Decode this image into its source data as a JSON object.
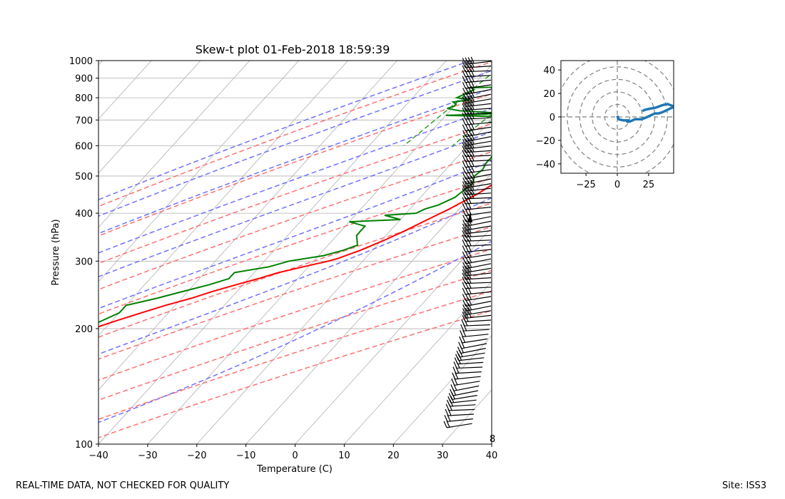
{
  "chart_data": [
    {
      "type": "line",
      "subtype": "skew-t",
      "title": "Skew-t plot 01-Feb-2018 18:59:39",
      "xlabel": "Temperature (C)",
      "ylabel": "Pressure (hPa)",
      "xlim": [
        -40,
        40
      ],
      "ylim": [
        1000,
        100
      ],
      "y_scale": "log",
      "x_ticks": [
        "−40",
        "−30",
        "−20",
        "−10",
        "0",
        "10",
        "20",
        "30",
        "40"
      ],
      "y_ticks": [
        "100",
        "200",
        "300",
        "400",
        "500",
        "600",
        "700",
        "800",
        "900",
        "1000"
      ],
      "grid": true,
      "series": [
        {
          "role": "temperature",
          "color": "#ff0000",
          "p": [
            1000,
            990,
            960,
            930,
            900,
            870,
            850,
            830,
            810,
            800,
            780,
            750,
            720,
            700,
            680,
            650,
            620,
            600,
            580,
            560,
            540,
            520,
            500,
            490,
            470,
            450,
            430,
            410,
            400,
            380,
            360,
            340,
            320,
            305,
            300,
            295,
            290,
            285,
            280,
            275,
            270,
            260,
            250,
            240,
            230,
            220,
            210,
            200,
            190,
            180,
            170,
            160,
            150,
            140,
            130,
            125,
            120,
            115,
            110,
            105,
            100
          ],
          "t": [
            0,
            -2,
            -5.5,
            -6.5,
            -6,
            -4.5,
            -4,
            -4.5,
            -4,
            -4.3,
            -4.5,
            -5,
            -5.5,
            -5.5,
            -6,
            -6,
            -6,
            -5.5,
            -5.5,
            -6,
            -5.5,
            -6.5,
            -6.5,
            -7,
            -8,
            -9,
            -10.5,
            -12,
            -13,
            -15,
            -17,
            -19.5,
            -22.5,
            -25.5,
            -27,
            -29,
            -31,
            -33,
            -35,
            -36.5,
            -38,
            -41.5,
            -45,
            -48,
            -52,
            -55.5,
            -59,
            -62.5,
            -66,
            -69,
            -72,
            -74.5,
            -77,
            -79,
            -81,
            -82,
            -82,
            -82.5,
            -82,
            -83,
            -83
          ]
        },
        {
          "role": "dewpoint",
          "color": "#008000",
          "p": [
            1000,
            980,
            950,
            920,
            900,
            870,
            860,
            850,
            840,
            820,
            800,
            790,
            780,
            770,
            760,
            750,
            740,
            730,
            725,
            720,
            715,
            710,
            705,
            700,
            695,
            690,
            680,
            670,
            650,
            630,
            610,
            600,
            580,
            560,
            540,
            520,
            500,
            480,
            460,
            440,
            420,
            410,
            400,
            395,
            390,
            385,
            380,
            370,
            350,
            340,
            330,
            320,
            310,
            300,
            290,
            280,
            270,
            260,
            250,
            240,
            230,
            220,
            210,
            200,
            190,
            180,
            170,
            160,
            150,
            140,
            130,
            120,
            110,
            100
          ],
          "t": [
            -10,
            -10,
            -9,
            -9,
            -9,
            -9,
            -10,
            -30,
            -29,
            -30,
            -31,
            -28,
            -31,
            -30,
            -30,
            -31,
            -28,
            -20,
            -22,
            -30,
            -20,
            -17,
            -16,
            -16.5,
            -13,
            -20,
            -13.5,
            -12,
            -11,
            -11,
            -13,
            -13,
            -13.5,
            -13,
            -13,
            -12.5,
            -13,
            -12,
            -12.5,
            -13,
            -15,
            -17,
            -18,
            -24,
            -22,
            -20,
            -30,
            -26,
            -26,
            -25,
            -24,
            -26,
            -29,
            -35,
            -38,
            -44,
            -44,
            -47,
            -51,
            -55,
            -60,
            -60,
            -62,
            -64,
            -67,
            -70,
            -72,
            -75,
            -76,
            -78,
            -79,
            -79,
            -80,
            -82
          ]
        }
      ],
      "reference_lines": [
        "dry adiabats",
        "moist adiabats",
        "mixing ratio lines",
        "isotherms"
      ],
      "wind_barbs": "right side, 100–1000 hPa",
      "colors": {
        "temperature": "#ff0000",
        "dewpoint": "#008000",
        "dry_adiabat": "#ff7070",
        "moist_adiabat": "#7070ff",
        "mixing_ratio": "#2ca02c",
        "hodograph": "#1f77b4"
      }
    },
    {
      "type": "line",
      "subtype": "hodograph",
      "xlim": [
        -45,
        45
      ],
      "ylim": [
        -48,
        48
      ],
      "x_ticks": [
        "−25",
        "0",
        "25"
      ],
      "y_ticks": [
        "40",
        "20",
        "0",
        "−20",
        "−40"
      ],
      "rings": [
        10,
        20,
        30,
        40,
        50
      ],
      "u": [
        0,
        1,
        5,
        9,
        8,
        10,
        14,
        19,
        22,
        24,
        26,
        28,
        30,
        33,
        36,
        40,
        44,
        45,
        40,
        36,
        31,
        26,
        22,
        20
      ],
      "v": [
        1,
        -2,
        -3,
        -3,
        -4,
        -4,
        -2,
        -2,
        -1,
        0,
        1,
        2,
        3,
        3,
        4,
        6,
        8,
        9,
        11,
        10,
        8,
        7,
        6,
        5
      ],
      "color": "#1f77b4"
    }
  ],
  "footer": {
    "left": "REAL-TIME DATA, NOT CHECKED FOR QUALITY",
    "right": "Site: ISS3"
  },
  "annotation": "8"
}
